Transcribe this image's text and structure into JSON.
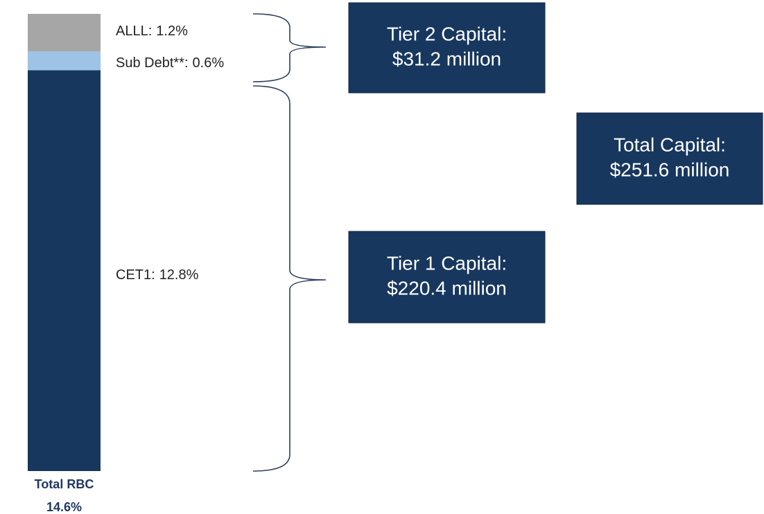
{
  "chart_data": {
    "type": "stacked_bar",
    "categories": [
      "Total RBC"
    ],
    "total": {
      "value": 14.6,
      "label": "14.6%"
    },
    "ylim": [
      0,
      14.6
    ],
    "series": [
      {
        "name": "CET1:",
        "color": "#17375e",
        "values": [
          12.8
        ],
        "value_labels": [
          "12.8%"
        ]
      },
      {
        "name": "Sub Debt**:",
        "color": "#9dc3e6",
        "values": [
          0.6
        ],
        "value_labels": [
          "0.6%"
        ]
      },
      {
        "name": "ALLL:",
        "color": "#a6a6a6",
        "values": [
          1.2
        ],
        "value_labels": [
          "1.2%"
        ]
      }
    ],
    "annotations": [
      {
        "lines": [
          "Tier 2 Capital:",
          "$31.2 million"
        ]
      },
      {
        "lines": [
          "Total Capital:",
          "$251.6 million"
        ]
      },
      {
        "lines": [
          "Tier 1 Capital:",
          "$220.4 million"
        ]
      }
    ]
  }
}
